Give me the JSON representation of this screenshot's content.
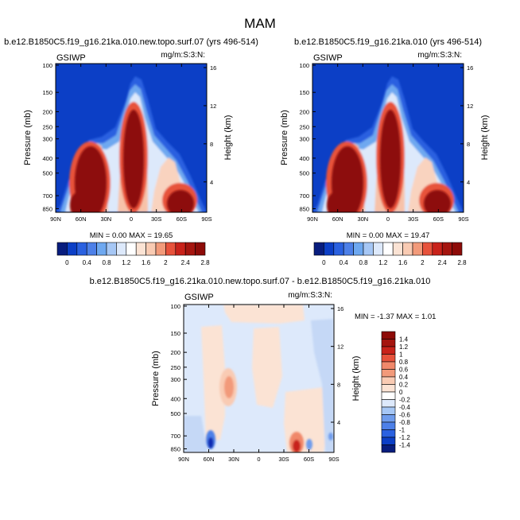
{
  "figure": {
    "title": "MAM"
  },
  "axes": {
    "ylabel_left": "Pressure (mb)",
    "ylabel_right": "Height (km)",
    "xticks": [
      "90N",
      "60N",
      "30N",
      "0",
      "30S",
      "60S",
      "90S"
    ],
    "pressure_ticks": [
      "100",
      "150",
      "200",
      "250",
      "300",
      "400",
      "500",
      "700",
      "850"
    ],
    "height_ticks": [
      "16",
      "12",
      "8",
      "4"
    ]
  },
  "panels": [
    {
      "title": "b.e12.B1850C5.f19_g16.21ka.010.new.topo.surf.07 (yrs 496-514)",
      "variable": "GSIWP",
      "units": "mg/m:S:3:N:",
      "stats": {
        "min_label": "MIN =",
        "min": "0.00",
        "max_label": "MAX =",
        "max": "19.65"
      }
    },
    {
      "title": "b.e12.B1850C5.f19_g16.21ka.010 (yrs 496-514)",
      "variable": "GSIWP",
      "units": "mg/m:S:3:N:",
      "stats": {
        "min_label": "MIN =",
        "min": "0.00",
        "max_label": "MAX =",
        "max": "19.47"
      }
    },
    {
      "title": "b.e12.B1850C5.f19_g16.21ka.010.new.topo.surf.07 - b.e12.B1850C5.f19_g16.21ka.010",
      "variable": "GSIWP",
      "units": "mg/m:S:3:N:",
      "stats": {
        "min_label": "MIN =",
        "min": "-1.37",
        "max_label": "MAX =",
        "max": "1.01"
      }
    }
  ],
  "chart_data": [
    {
      "type": "heatmap",
      "title": "b.e12.B1850C5.f19_g16.21ka.010.new.topo.surf.07 (yrs 496-514)",
      "xlabel": "",
      "ylabel": "Pressure (mb)",
      "ylabel_right": "Height (km)",
      "xlim": [
        90,
        -90
      ],
      "ylim": [
        100,
        850
      ],
      "xticks": [
        "90N",
        "60N",
        "30N",
        "0",
        "30S",
        "60S",
        "90S"
      ],
      "colorbar": {
        "levels": [
          0,
          0.2,
          0.4,
          0.6,
          0.8,
          1.0,
          1.2,
          1.4,
          1.6,
          1.8,
          2.0,
          2.2,
          2.4,
          2.6,
          2.8
        ],
        "labels": [
          "0",
          "0.4",
          "0.8",
          "1.2",
          "1.6",
          "2",
          "2.4",
          "2.8"
        ],
        "colors": [
          "#081d7e",
          "#0c3fc6",
          "#2a61e0",
          "#4d80e8",
          "#6ea8f0",
          "#a6c7f5",
          "#dde9fb",
          "#ffffff",
          "#fbe3d4",
          "#f9cbb3",
          "#f29a7a",
          "#e7523b",
          "#c8221a",
          "#a5150f",
          "#8d0b08"
        ]
      },
      "min": 0.0,
      "max": 19.65
    },
    {
      "type": "heatmap",
      "title": "b.e12.B1850C5.f19_g16.21ka.010 (yrs 496-514)",
      "xlabel": "",
      "ylabel": "Pressure (mb)",
      "ylabel_right": "Height (km)",
      "xlim": [
        90,
        -90
      ],
      "ylim": [
        100,
        850
      ],
      "xticks": [
        "90N",
        "60N",
        "30N",
        "0",
        "30S",
        "60S",
        "90S"
      ],
      "colorbar": {
        "levels": [
          0,
          0.2,
          0.4,
          0.6,
          0.8,
          1.0,
          1.2,
          1.4,
          1.6,
          1.8,
          2.0,
          2.2,
          2.4,
          2.6,
          2.8
        ],
        "labels": [
          "0",
          "0.4",
          "0.8",
          "1.2",
          "1.6",
          "2",
          "2.4",
          "2.8"
        ],
        "colors": [
          "#081d7e",
          "#0c3fc6",
          "#2a61e0",
          "#4d80e8",
          "#6ea8f0",
          "#a6c7f5",
          "#dde9fb",
          "#ffffff",
          "#fbe3d4",
          "#f9cbb3",
          "#f29a7a",
          "#e7523b",
          "#c8221a",
          "#a5150f",
          "#8d0b08"
        ]
      },
      "min": 0.0,
      "max": 19.47
    },
    {
      "type": "heatmap",
      "title": "b.e12.B1850C5.f19_g16.21ka.010.new.topo.surf.07 - b.e12.B1850C5.f19_g16.21ka.010",
      "xlabel": "",
      "ylabel": "Pressure (mb)",
      "ylabel_right": "Height (km)",
      "xlim": [
        90,
        -90
      ],
      "ylim": [
        100,
        850
      ],
      "xticks": [
        "90N",
        "60N",
        "30N",
        "0",
        "30S",
        "60S",
        "90S"
      ],
      "colorbar": {
        "labels": [
          "1.4",
          "1.2",
          "1",
          "0.8",
          "0.6",
          "0.4",
          "0.2",
          "0",
          "-0.2",
          "-0.4",
          "-0.6",
          "-0.8",
          "-1",
          "-1.2",
          "-1.4"
        ],
        "colors": [
          "#8d0b08",
          "#a5150f",
          "#c8221a",
          "#e7523b",
          "#f0886a",
          "#f29a7a",
          "#f9cbb3",
          "#fbe3d4",
          "#ffffff",
          "#dde9fb",
          "#a6c7f5",
          "#6f9cec",
          "#4d80e8",
          "#2a61e0",
          "#0c3fc6",
          "#081d7e"
        ]
      },
      "min": -1.37,
      "max": 1.01
    }
  ]
}
